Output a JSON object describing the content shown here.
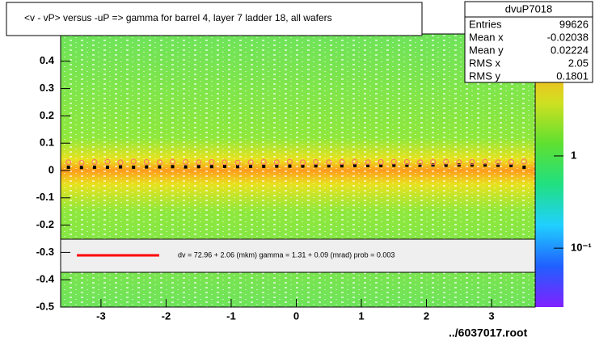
{
  "chart_data": {
    "type": "heatmap-profile",
    "title": "<v - vP>       versus  -uP =>  gamma for barrel 4, layer 7 ladder 18, all wafers",
    "stats": {
      "name": "dvuP7018",
      "rows": [
        [
          "Entries",
          "99626"
        ],
        [
          "Mean x",
          "-0.02038"
        ],
        [
          "Mean y",
          "0.02224"
        ],
        [
          "RMS x",
          "2.05"
        ],
        [
          "RMS y",
          "0.1801"
        ]
      ]
    },
    "fit_legend": "dv =   72.96 +   2.06 (mkm) gamma =    1.31 +   0.09 (mrad) prob = 0.003",
    "footer": "../6037017.root",
    "xlim": [
      -3.62,
      3.67
    ],
    "xticks": [
      -3,
      -2,
      -1,
      0,
      1,
      2,
      3
    ],
    "ylim": [
      -0.5,
      0.5
    ],
    "yticks": [
      -0.5,
      -0.4,
      -0.3,
      -0.2,
      -0.1,
      0,
      0.1,
      0.2,
      0.3,
      0.4
    ],
    "zlog": true,
    "zlim": [
      0.023,
      21
    ],
    "zticks": [
      {
        "value": 0.1,
        "label": "10⁻¹"
      },
      {
        "value": 1,
        "label": "1"
      }
    ],
    "x": [
      -3.5,
      -3.3,
      -3.1,
      -2.9,
      -2.7,
      -2.5,
      -2.3,
      -2.1,
      -1.9,
      -1.7,
      -1.5,
      -1.3,
      -1.1,
      -0.9,
      -0.7,
      -0.5,
      -0.3,
      -0.1,
      0.1,
      0.3,
      0.5,
      0.7,
      0.9,
      1.1,
      1.3,
      1.5,
      1.7,
      1.9,
      2.1,
      2.3,
      2.5,
      2.7,
      2.9,
      3.1,
      3.3,
      3.5
    ],
    "series": [
      {
        "color": "#000000",
        "marker": "square",
        "values": [
          0.012,
          0.011,
          0.012,
          0.012,
          0.013,
          0.012,
          0.013,
          0.013,
          0.014,
          0.013,
          0.014,
          0.014,
          0.015,
          0.014,
          0.015,
          0.015,
          0.016,
          0.016,
          0.016,
          0.017,
          0.017,
          0.017,
          0.018,
          0.018,
          0.018,
          0.019,
          0.019,
          0.019,
          0.02,
          0.019,
          0.02,
          0.02,
          0.02,
          0.019,
          0.018,
          0.012
        ]
      },
      {
        "color": "#ff6f6f",
        "marker": "circle",
        "values": [
          0.03,
          0.028,
          0.031,
          0.032,
          0.03,
          0.033,
          0.031,
          0.03,
          0.032,
          0.031,
          0.03,
          0.031,
          0.03,
          0.029,
          0.03,
          0.031,
          0.03,
          0.032,
          0.03,
          0.031,
          0.03,
          0.031,
          0.032,
          0.03,
          0.031,
          0.032,
          0.031,
          0.03,
          0.031,
          0.032,
          0.03,
          0.031,
          0.032,
          0.03,
          0.031,
          0.033
        ]
      }
    ]
  }
}
